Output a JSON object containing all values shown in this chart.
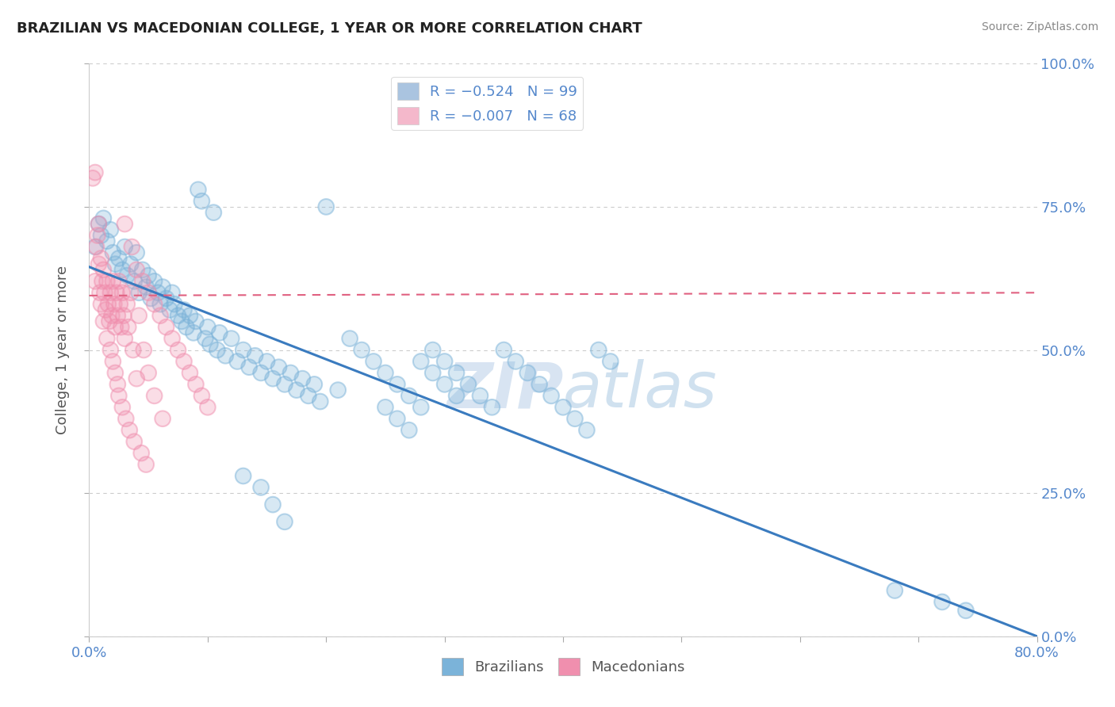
{
  "title": "BRAZILIAN VS MACEDONIAN COLLEGE, 1 YEAR OR MORE CORRELATION CHART",
  "source": "Source: ZipAtlas.com",
  "ylabel": "College, 1 year or more",
  "xlim": [
    0.0,
    0.8
  ],
  "ylim": [
    0.0,
    1.0
  ],
  "ytick_values": [
    0.0,
    0.25,
    0.5,
    0.75,
    1.0
  ],
  "xtick_values": [
    0.0,
    0.1,
    0.2,
    0.3,
    0.4,
    0.5,
    0.6,
    0.7,
    0.8
  ],
  "xtick_label_values": [
    0.0,
    0.8
  ],
  "legend_labels_bottom": [
    "Brazilians",
    "Macedonians"
  ],
  "legend_R_N": [
    {
      "R": "-0.524",
      "N": "99",
      "color": "#aac4e0"
    },
    {
      "R": "-0.007",
      "N": "68",
      "color": "#f4b8cb"
    }
  ],
  "blue_color": "#7bb3d9",
  "pink_color": "#f08fae",
  "blue_line_color": "#3a7bbf",
  "pink_line_color": "#e06080",
  "watermark_zip": "ZIP",
  "watermark_atlas": "atlas",
  "background_color": "#ffffff",
  "grid_color": "#cccccc",
  "title_color": "#333333",
  "axis_label_color": "#555555",
  "tick_label_color": "#5588cc",
  "blue_scatter": [
    [
      0.005,
      0.68
    ],
    [
      0.008,
      0.72
    ],
    [
      0.01,
      0.7
    ],
    [
      0.012,
      0.73
    ],
    [
      0.015,
      0.69
    ],
    [
      0.018,
      0.71
    ],
    [
      0.02,
      0.67
    ],
    [
      0.022,
      0.65
    ],
    [
      0.025,
      0.66
    ],
    [
      0.028,
      0.64
    ],
    [
      0.03,
      0.68
    ],
    [
      0.032,
      0.63
    ],
    [
      0.035,
      0.65
    ],
    [
      0.038,
      0.62
    ],
    [
      0.04,
      0.67
    ],
    [
      0.042,
      0.6
    ],
    [
      0.045,
      0.64
    ],
    [
      0.048,
      0.61
    ],
    [
      0.05,
      0.63
    ],
    [
      0.052,
      0.59
    ],
    [
      0.055,
      0.62
    ],
    [
      0.058,
      0.6
    ],
    [
      0.06,
      0.58
    ],
    [
      0.062,
      0.61
    ],
    [
      0.065,
      0.59
    ],
    [
      0.068,
      0.57
    ],
    [
      0.07,
      0.6
    ],
    [
      0.072,
      0.58
    ],
    [
      0.075,
      0.56
    ],
    [
      0.078,
      0.55
    ],
    [
      0.08,
      0.57
    ],
    [
      0.082,
      0.54
    ],
    [
      0.085,
      0.56
    ],
    [
      0.088,
      0.53
    ],
    [
      0.09,
      0.55
    ],
    [
      0.092,
      0.78
    ],
    [
      0.095,
      0.76
    ],
    [
      0.098,
      0.52
    ],
    [
      0.1,
      0.54
    ],
    [
      0.102,
      0.51
    ],
    [
      0.105,
      0.74
    ],
    [
      0.108,
      0.5
    ],
    [
      0.11,
      0.53
    ],
    [
      0.115,
      0.49
    ],
    [
      0.12,
      0.52
    ],
    [
      0.125,
      0.48
    ],
    [
      0.13,
      0.5
    ],
    [
      0.135,
      0.47
    ],
    [
      0.14,
      0.49
    ],
    [
      0.145,
      0.46
    ],
    [
      0.15,
      0.48
    ],
    [
      0.155,
      0.45
    ],
    [
      0.16,
      0.47
    ],
    [
      0.165,
      0.44
    ],
    [
      0.17,
      0.46
    ],
    [
      0.175,
      0.43
    ],
    [
      0.18,
      0.45
    ],
    [
      0.185,
      0.42
    ],
    [
      0.19,
      0.44
    ],
    [
      0.195,
      0.41
    ],
    [
      0.2,
      0.75
    ],
    [
      0.21,
      0.43
    ],
    [
      0.22,
      0.52
    ],
    [
      0.23,
      0.5
    ],
    [
      0.24,
      0.48
    ],
    [
      0.25,
      0.46
    ],
    [
      0.26,
      0.44
    ],
    [
      0.27,
      0.42
    ],
    [
      0.28,
      0.4
    ],
    [
      0.29,
      0.5
    ],
    [
      0.3,
      0.48
    ],
    [
      0.31,
      0.46
    ],
    [
      0.32,
      0.44
    ],
    [
      0.33,
      0.42
    ],
    [
      0.34,
      0.4
    ],
    [
      0.35,
      0.5
    ],
    [
      0.36,
      0.48
    ],
    [
      0.37,
      0.46
    ],
    [
      0.38,
      0.44
    ],
    [
      0.39,
      0.42
    ],
    [
      0.4,
      0.4
    ],
    [
      0.41,
      0.38
    ],
    [
      0.42,
      0.36
    ],
    [
      0.43,
      0.5
    ],
    [
      0.44,
      0.48
    ],
    [
      0.13,
      0.28
    ],
    [
      0.145,
      0.26
    ],
    [
      0.155,
      0.23
    ],
    [
      0.165,
      0.2
    ],
    [
      0.25,
      0.4
    ],
    [
      0.26,
      0.38
    ],
    [
      0.27,
      0.36
    ],
    [
      0.28,
      0.48
    ],
    [
      0.29,
      0.46
    ],
    [
      0.3,
      0.44
    ],
    [
      0.31,
      0.42
    ],
    [
      0.68,
      0.08
    ],
    [
      0.72,
      0.06
    ],
    [
      0.74,
      0.045
    ]
  ],
  "pink_scatter": [
    [
      0.003,
      0.8
    ],
    [
      0.005,
      0.81
    ],
    [
      0.005,
      0.62
    ],
    [
      0.006,
      0.68
    ],
    [
      0.007,
      0.7
    ],
    [
      0.008,
      0.65
    ],
    [
      0.008,
      0.72
    ],
    [
      0.009,
      0.6
    ],
    [
      0.01,
      0.66
    ],
    [
      0.01,
      0.58
    ],
    [
      0.011,
      0.62
    ],
    [
      0.012,
      0.64
    ],
    [
      0.012,
      0.55
    ],
    [
      0.013,
      0.6
    ],
    [
      0.014,
      0.57
    ],
    [
      0.015,
      0.62
    ],
    [
      0.015,
      0.52
    ],
    [
      0.016,
      0.58
    ],
    [
      0.017,
      0.55
    ],
    [
      0.018,
      0.6
    ],
    [
      0.018,
      0.5
    ],
    [
      0.019,
      0.56
    ],
    [
      0.02,
      0.62
    ],
    [
      0.02,
      0.48
    ],
    [
      0.021,
      0.58
    ],
    [
      0.022,
      0.54
    ],
    [
      0.022,
      0.46
    ],
    [
      0.023,
      0.6
    ],
    [
      0.024,
      0.56
    ],
    [
      0.024,
      0.44
    ],
    [
      0.025,
      0.62
    ],
    [
      0.025,
      0.42
    ],
    [
      0.026,
      0.58
    ],
    [
      0.027,
      0.54
    ],
    [
      0.028,
      0.6
    ],
    [
      0.028,
      0.4
    ],
    [
      0.029,
      0.56
    ],
    [
      0.03,
      0.72
    ],
    [
      0.03,
      0.52
    ],
    [
      0.031,
      0.38
    ],
    [
      0.032,
      0.58
    ],
    [
      0.033,
      0.54
    ],
    [
      0.034,
      0.36
    ],
    [
      0.035,
      0.6
    ],
    [
      0.036,
      0.68
    ],
    [
      0.037,
      0.5
    ],
    [
      0.038,
      0.34
    ],
    [
      0.04,
      0.64
    ],
    [
      0.04,
      0.45
    ],
    [
      0.042,
      0.56
    ],
    [
      0.044,
      0.32
    ],
    [
      0.045,
      0.62
    ],
    [
      0.046,
      0.5
    ],
    [
      0.048,
      0.3
    ],
    [
      0.05,
      0.6
    ],
    [
      0.05,
      0.46
    ],
    [
      0.055,
      0.58
    ],
    [
      0.055,
      0.42
    ],
    [
      0.06,
      0.56
    ],
    [
      0.062,
      0.38
    ],
    [
      0.065,
      0.54
    ],
    [
      0.07,
      0.52
    ],
    [
      0.075,
      0.5
    ],
    [
      0.08,
      0.48
    ],
    [
      0.085,
      0.46
    ],
    [
      0.09,
      0.44
    ],
    [
      0.095,
      0.42
    ],
    [
      0.1,
      0.4
    ]
  ],
  "blue_trend_x": [
    0.0,
    0.8
  ],
  "blue_trend_y": [
    0.645,
    0.0
  ],
  "pink_trend_x": [
    0.0,
    0.8
  ],
  "pink_trend_y": [
    0.595,
    0.6
  ]
}
